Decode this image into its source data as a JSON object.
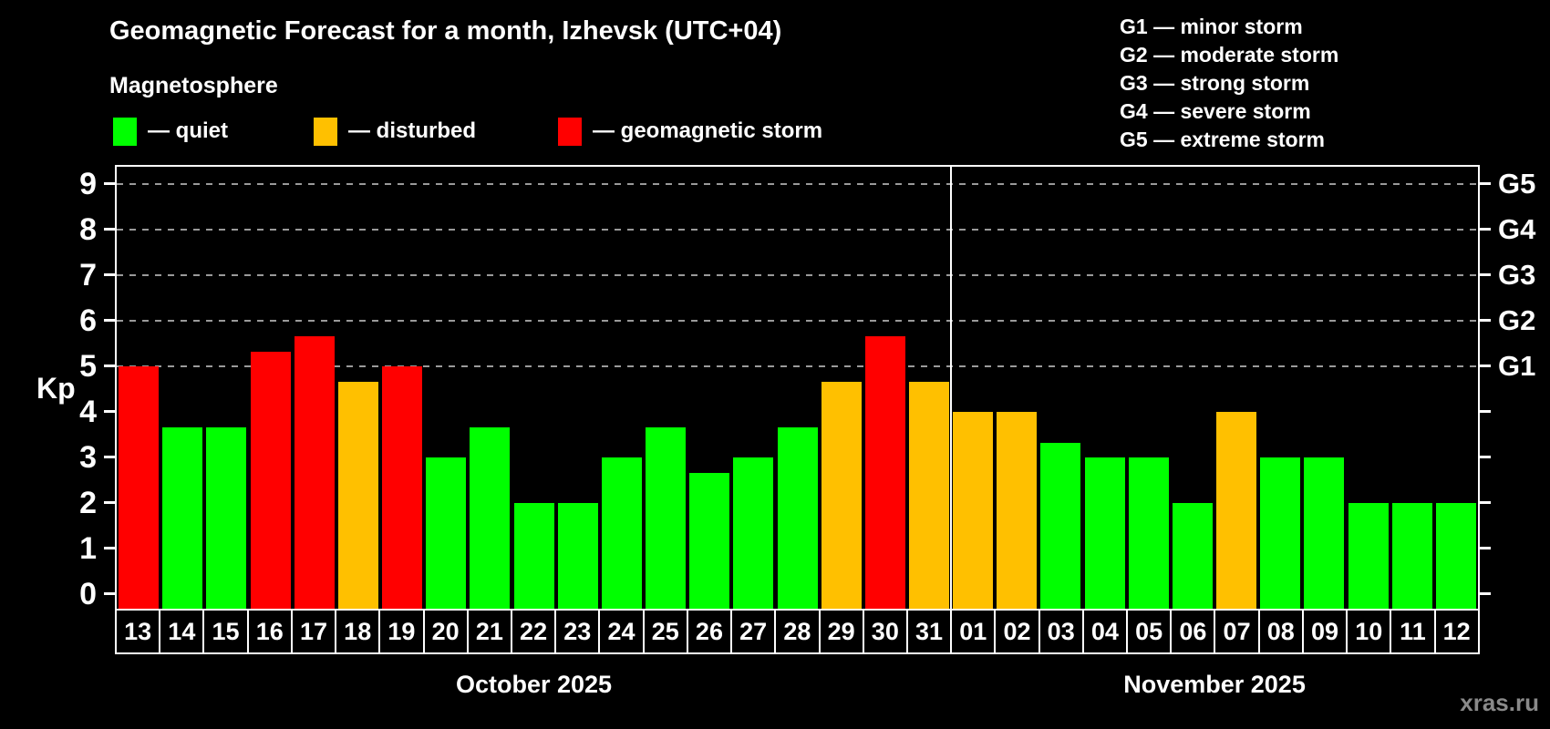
{
  "header": {
    "title": "Geomagnetic Forecast for a month, Izhevsk (UTC+04)",
    "subtitle": "Magnetosphere"
  },
  "legend": {
    "items": [
      {
        "name": "quiet",
        "label": "— quiet",
        "color": "#00ff00"
      },
      {
        "name": "disturbed",
        "label": "— disturbed",
        "color": "#ffc000"
      },
      {
        "name": "storm",
        "label": "— geomagnetic storm",
        "color": "#ff0000"
      }
    ]
  },
  "storm_scale_legend": {
    "items": [
      "G1 — minor storm",
      "G2 — moderate storm",
      "G3 — strong storm",
      "G4 — severe storm",
      "G5 — extreme storm"
    ]
  },
  "watermark": "xras.ru",
  "chart_data": {
    "type": "bar",
    "title": "Geomagnetic Forecast for a month, Izhevsk (UTC+04)",
    "ylabel": "Kp",
    "ylim": [
      0,
      9.4
    ],
    "yticks": [
      0,
      1,
      2,
      3,
      4,
      5,
      6,
      7,
      8,
      9
    ],
    "gridlines": [
      5,
      6,
      7,
      8,
      9
    ],
    "grid_style": "dashed-gray",
    "legend_position": "top",
    "right_axis": [
      {
        "label": "G1",
        "value": 5
      },
      {
        "label": "G2",
        "value": 6
      },
      {
        "label": "G3",
        "value": 7
      },
      {
        "label": "G4",
        "value": 8
      },
      {
        "label": "G5",
        "value": 9
      }
    ],
    "colors": {
      "quiet": "#00ff00",
      "disturbed": "#ffc000",
      "storm": "#ff0000"
    },
    "months": [
      {
        "label": "October 2025",
        "days": [
          {
            "date": "13",
            "kp": 5.0,
            "level": "storm"
          },
          {
            "date": "14",
            "kp": 3.67,
            "level": "quiet"
          },
          {
            "date": "15",
            "kp": 3.67,
            "level": "quiet"
          },
          {
            "date": "16",
            "kp": 5.33,
            "level": "storm"
          },
          {
            "date": "17",
            "kp": 5.67,
            "level": "storm"
          },
          {
            "date": "18",
            "kp": 4.67,
            "level": "disturbed"
          },
          {
            "date": "19",
            "kp": 5.0,
            "level": "storm"
          },
          {
            "date": "20",
            "kp": 3.0,
            "level": "quiet"
          },
          {
            "date": "21",
            "kp": 3.67,
            "level": "quiet"
          },
          {
            "date": "22",
            "kp": 2.0,
            "level": "quiet"
          },
          {
            "date": "23",
            "kp": 2.0,
            "level": "quiet"
          },
          {
            "date": "24",
            "kp": 3.0,
            "level": "quiet"
          },
          {
            "date": "25",
            "kp": 3.67,
            "level": "quiet"
          },
          {
            "date": "26",
            "kp": 2.67,
            "level": "quiet"
          },
          {
            "date": "27",
            "kp": 3.0,
            "level": "quiet"
          },
          {
            "date": "28",
            "kp": 3.67,
            "level": "quiet"
          },
          {
            "date": "29",
            "kp": 4.67,
            "level": "disturbed"
          },
          {
            "date": "30",
            "kp": 5.67,
            "level": "storm"
          },
          {
            "date": "31",
            "kp": 4.67,
            "level": "disturbed"
          }
        ]
      },
      {
        "label": "November 2025",
        "days": [
          {
            "date": "01",
            "kp": 4.0,
            "level": "disturbed"
          },
          {
            "date": "02",
            "kp": 4.0,
            "level": "disturbed"
          },
          {
            "date": "03",
            "kp": 3.33,
            "level": "quiet"
          },
          {
            "date": "04",
            "kp": 3.0,
            "level": "quiet"
          },
          {
            "date": "05",
            "kp": 3.0,
            "level": "quiet"
          },
          {
            "date": "06",
            "kp": 2.0,
            "level": "quiet"
          },
          {
            "date": "07",
            "kp": 4.0,
            "level": "disturbed"
          },
          {
            "date": "08",
            "kp": 3.0,
            "level": "quiet"
          },
          {
            "date": "09",
            "kp": 3.0,
            "level": "quiet"
          },
          {
            "date": "10",
            "kp": 2.0,
            "level": "quiet"
          },
          {
            "date": "11",
            "kp": 2.0,
            "level": "quiet"
          },
          {
            "date": "12",
            "kp": 2.0,
            "level": "quiet"
          }
        ]
      }
    ]
  }
}
